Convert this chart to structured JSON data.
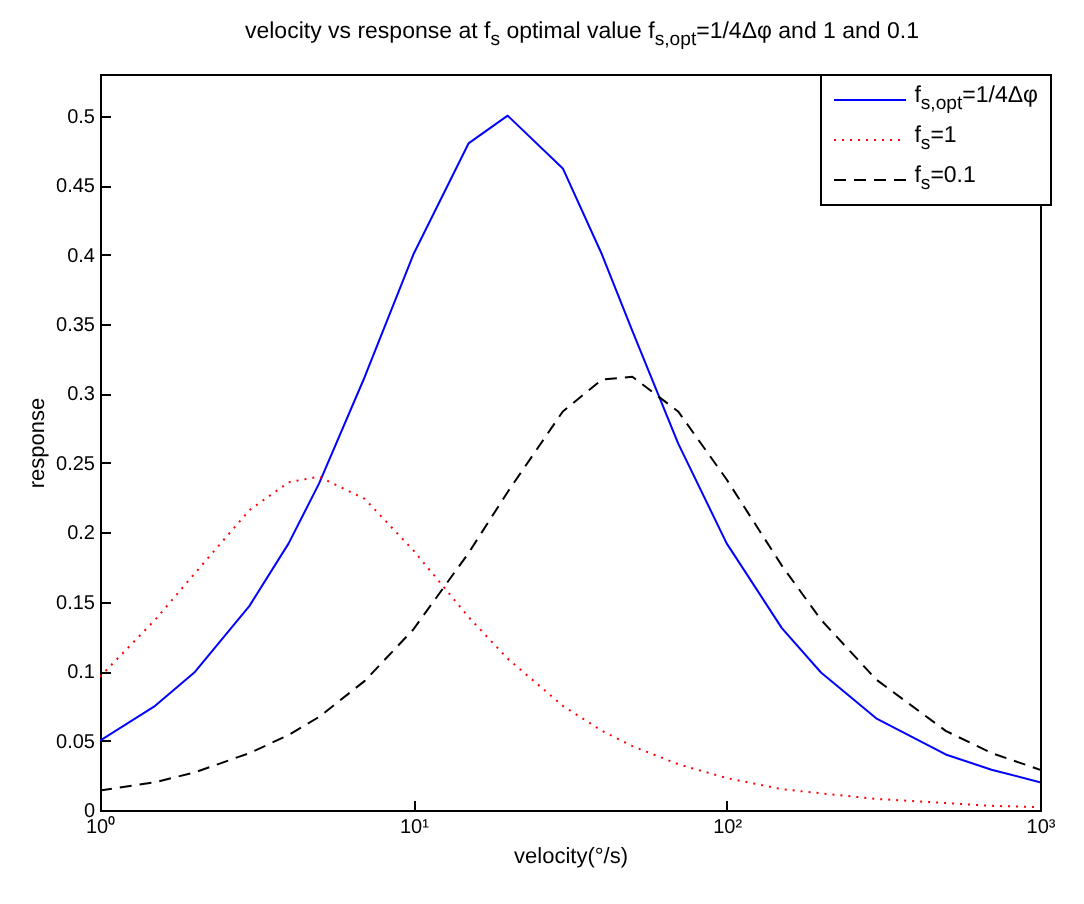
{
  "chart_data": {
    "type": "line",
    "title": "velocity vs response at f$_{s}$ optimal value f$_{s,opt}$=1/4Δφ and 1 and 0.1",
    "xlabel": "velocity(°/s)",
    "ylabel": "response",
    "log": "x",
    "grid": false,
    "legend": "top right",
    "marker": "none",
    "x": [
      1,
      1.5,
      2,
      3,
      4,
      5,
      7,
      10,
      15,
      20,
      30,
      40,
      50,
      70,
      100,
      150,
      200,
      300,
      500,
      700,
      1000
    ],
    "xlim": [
      1,
      1000
    ],
    "xticks": [
      {
        "value": 1,
        "label": "10⁰"
      },
      {
        "value": 10,
        "label": "10¹"
      },
      {
        "value": 100,
        "label": "10²"
      },
      {
        "value": 1000,
        "label": "10³"
      }
    ],
    "ylim": [
      0,
      0.53
    ],
    "yticks": [
      0,
      0.05,
      0.1,
      0.15,
      0.2,
      0.25,
      0.3,
      0.35,
      0.4,
      0.45,
      0.5
    ],
    "series": [
      {
        "name": "f$_{s,opt}$=1/4Δφ",
        "color": "#0000ff",
        "line_style": "solid",
        "values": [
          0.05,
          0.075,
          0.099,
          0.147,
          0.192,
          0.235,
          0.312,
          0.4,
          0.48,
          0.5,
          0.462,
          0.4,
          0.345,
          0.264,
          0.192,
          0.131,
          0.099,
          0.066,
          0.04,
          0.029,
          0.02
        ]
      },
      {
        "name": "f$_{s}$=1",
        "color": "#ff0000",
        "line_style": "dotted",
        "values": [
          0.096,
          0.137,
          0.17,
          0.216,
          0.236,
          0.24,
          0.224,
          0.187,
          0.139,
          0.109,
          0.075,
          0.057,
          0.046,
          0.033,
          0.023,
          0.015,
          0.012,
          0.008,
          0.005,
          0.003,
          0.002
        ]
      },
      {
        "name": "f$_{s}$=0.1",
        "color": "#000000",
        "line_style": "dashed",
        "values": [
          0.014,
          0.02,
          0.027,
          0.041,
          0.054,
          0.067,
          0.093,
          0.13,
          0.185,
          0.229,
          0.287,
          0.31,
          0.312,
          0.287,
          0.238,
          0.176,
          0.137,
          0.094,
          0.057,
          0.041,
          0.029
        ]
      }
    ]
  }
}
